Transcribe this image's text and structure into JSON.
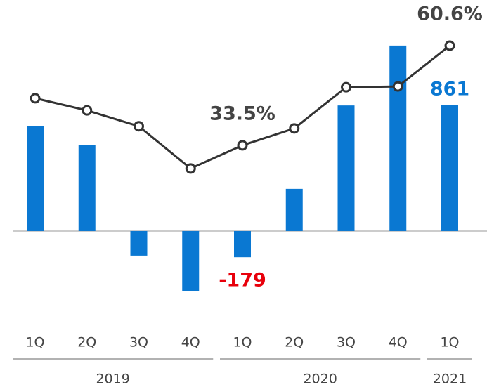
{
  "chart_data": {
    "type": "bar_line",
    "categories": [
      "1Q",
      "2Q",
      "3Q",
      "4Q",
      "1Q",
      "2Q",
      "3Q",
      "4Q",
      "1Q"
    ],
    "groups": [
      {
        "name": "2019",
        "count": 4
      },
      {
        "name": "2020",
        "count": 4
      },
      {
        "name": "2021",
        "count": 1
      }
    ],
    "ylim": [
      -534,
      1534
    ],
    "y2lim": [
      -11,
      71.1
    ],
    "series": [
      {
        "type": "bar",
        "color": "#0a78d2",
        "values": [
          717,
          587,
          -168,
          -409,
          -179,
          289,
          860,
          1270,
          861
        ],
        "value_labels": [
          null,
          null,
          null,
          null,
          "-179",
          null,
          null,
          null,
          "861"
        ]
      },
      {
        "type": "line",
        "axis": "y2",
        "color": "#333333",
        "values": [
          46.3,
          43.0,
          38.7,
          27.2,
          33.5,
          38.1,
          49.3,
          49.5,
          60.6
        ],
        "value_labels": [
          null,
          null,
          null,
          null,
          "33.5%",
          null,
          null,
          null,
          "60.6%"
        ]
      }
    ]
  }
}
